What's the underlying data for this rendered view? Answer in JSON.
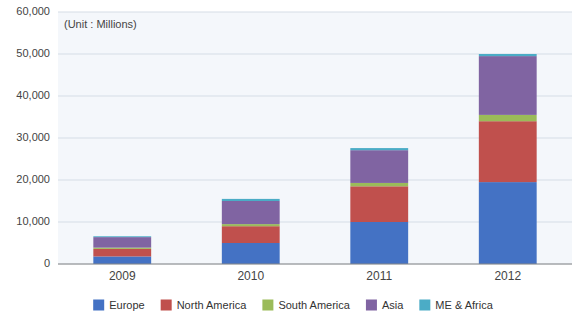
{
  "chart_data": {
    "type": "bar",
    "stacked": true,
    "annotation": "(Unit : Millions)",
    "categories": [
      "2009",
      "2010",
      "2011",
      "2012"
    ],
    "series": [
      {
        "name": "Europe",
        "color": "#4472c4",
        "values": [
          1800,
          5000,
          10000,
          19500
        ]
      },
      {
        "name": "North America",
        "color": "#c0504d",
        "values": [
          1800,
          4000,
          8500,
          14500
        ]
      },
      {
        "name": "South America",
        "color": "#9bbb59",
        "values": [
          300,
          500,
          800,
          1500
        ]
      },
      {
        "name": "Asia",
        "color": "#8064a2",
        "values": [
          2500,
          5500,
          7800,
          14000
        ]
      },
      {
        "name": "ME & Africa",
        "color": "#4bacc6",
        "values": [
          200,
          500,
          500,
          500
        ]
      }
    ],
    "ylim": [
      0,
      60000
    ],
    "yticks": [
      0,
      {
        "value": 10000,
        "label": "10,000"
      },
      {
        "value": 20000,
        "label": "20,000"
      },
      {
        "value": 30000,
        "label": "30,000"
      },
      {
        "value": 40000,
        "label": "40,000"
      },
      {
        "value": 50000,
        "label": "50,000"
      },
      {
        "value": 60000,
        "label": "60,000"
      }
    ],
    "grid": true,
    "legend": "bottom"
  }
}
